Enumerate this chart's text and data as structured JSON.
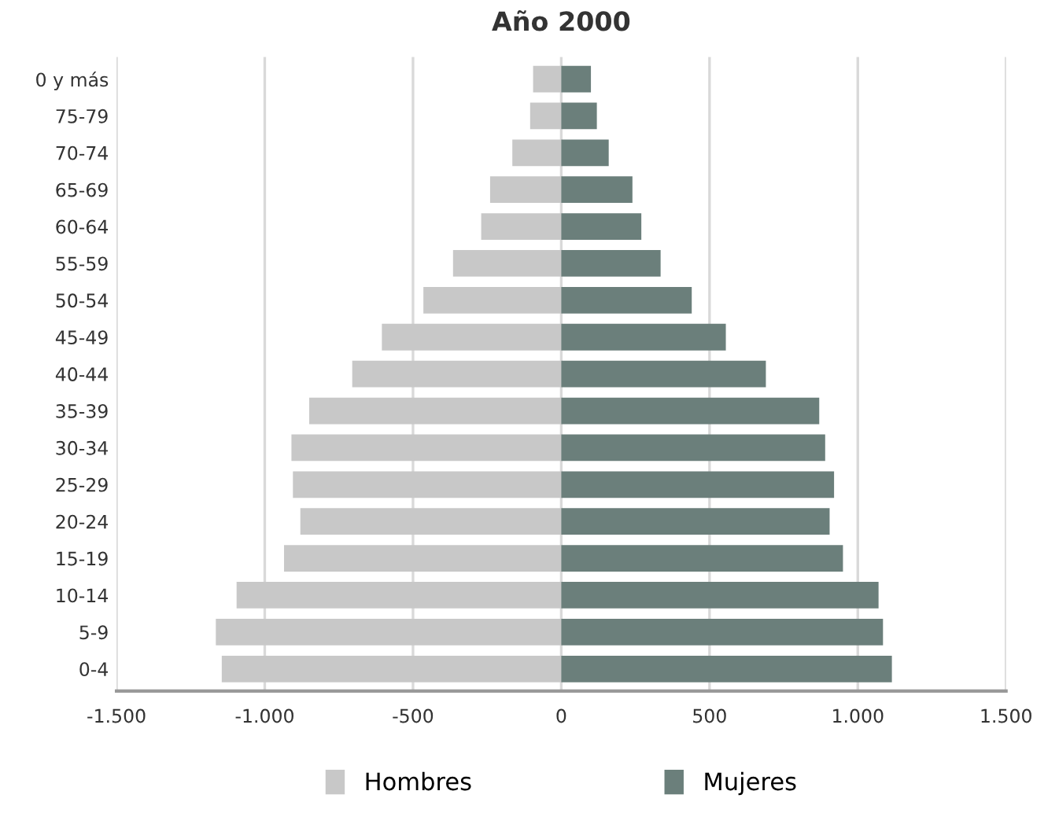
{
  "chart_data": {
    "type": "bar",
    "orientation": "horizontal",
    "title": "Año 2000",
    "categories": [
      "0 y más",
      "75-79",
      "70-74",
      "65-69",
      "60-64",
      "55-59",
      "50-54",
      "45-49",
      "40-44",
      "35-39",
      "30-34",
      "25-29",
      "20-24",
      "15-19",
      "10-14",
      "5-9",
      "0-4"
    ],
    "series": [
      {
        "name": "Hombres",
        "color": "#c8c8c8",
        "values": [
          -95,
          -105,
          -165,
          -240,
          -270,
          -365,
          -465,
          -605,
          -705,
          -850,
          -910,
          -905,
          -880,
          -935,
          -1095,
          -1165,
          -1145
        ]
      },
      {
        "name": "Mujeres",
        "color": "#6b7f7b",
        "values": [
          100,
          120,
          160,
          240,
          270,
          335,
          440,
          555,
          690,
          870,
          890,
          920,
          905,
          950,
          1070,
          1085,
          1115
        ]
      }
    ],
    "xlim": [
      -1500,
      1500
    ],
    "xticks": [
      {
        "value": -1500,
        "label": "-1.500"
      },
      {
        "value": -1000,
        "label": "-1.000"
      },
      -500,
      0,
      500,
      {
        "value": 1000,
        "label": "1.000"
      },
      {
        "value": 1500,
        "label": "1.500"
      }
    ],
    "grid": "x",
    "legend": "bottom",
    "stacked": true
  }
}
